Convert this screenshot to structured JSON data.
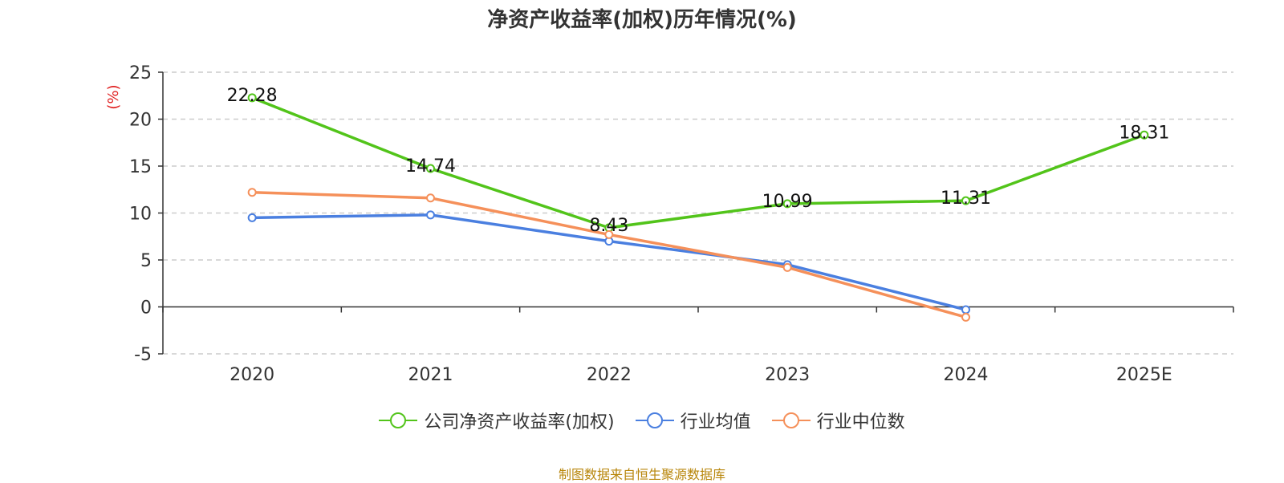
{
  "chart_data": {
    "type": "line",
    "title": "净资产收益率(加权)历年情况(%)",
    "ylabel": "(%)",
    "categories": [
      "2020",
      "2021",
      "2022",
      "2023",
      "2024",
      "2025E"
    ],
    "ylim": [
      -5,
      25
    ],
    "yticks": [
      -5,
      0,
      5,
      10,
      15,
      20,
      25
    ],
    "grid": true,
    "legend_position": "bottom",
    "series": [
      {
        "name": "公司净资产收益率(加权)",
        "color": "#52c41a",
        "values": [
          22.28,
          14.74,
          8.43,
          10.99,
          11.31,
          18.31
        ],
        "labels": [
          "22.28",
          "14.74",
          "8.43",
          "10.99",
          "11.31",
          "18.31"
        ]
      },
      {
        "name": "行业均值",
        "color": "#4a7fe0",
        "values": [
          9.5,
          9.8,
          7.0,
          4.5,
          -0.3,
          null
        ]
      },
      {
        "name": "行业中位数",
        "color": "#f5905a",
        "values": [
          12.2,
          11.6,
          7.7,
          4.2,
          -1.1,
          null
        ]
      }
    ]
  },
  "footer": {
    "source": "制图数据来自恒生聚源数据库"
  }
}
